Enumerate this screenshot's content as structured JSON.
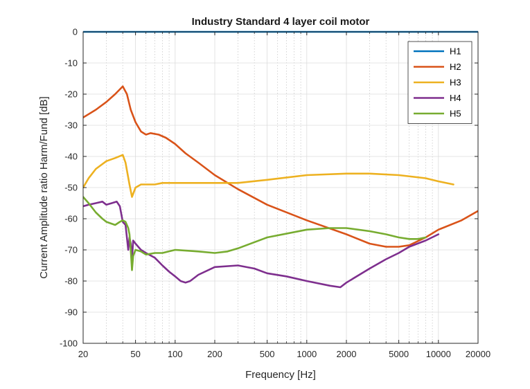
{
  "chart_data": {
    "type": "line",
    "title": "Industry Standard 4 layer coil motor",
    "xlabel": "Frequency [Hz]",
    "ylabel": "Current Amplitude ratio Harm/Fund [dB]",
    "xscale": "log",
    "xlim": [
      20,
      20000
    ],
    "ylim": [
      -100,
      0
    ],
    "xticks": [
      20,
      50,
      100,
      200,
      500,
      1000,
      2000,
      5000,
      10000,
      20000
    ],
    "xtick_labels": [
      "20",
      "50",
      "100",
      "200",
      "500",
      "1000",
      "2000",
      "5000",
      "10000",
      "20000"
    ],
    "yticks": [
      0,
      -10,
      -20,
      -30,
      -40,
      -50,
      -60,
      -70,
      -80,
      -90,
      -100
    ],
    "ytick_labels": [
      "0",
      "-10",
      "-20",
      "-30",
      "-40",
      "-50",
      "-60",
      "-70",
      "-80",
      "-90",
      "-100"
    ],
    "grid": true,
    "legend_position": "top-right",
    "series": [
      {
        "name": "H1",
        "color": "#0072BD",
        "x": [
          20,
          20000
        ],
        "y": [
          0,
          0
        ]
      },
      {
        "name": "H2",
        "color": "#D95319",
        "x": [
          20,
          25,
          30,
          35,
          40,
          43,
          46,
          50,
          55,
          60,
          65,
          75,
          85,
          100,
          120,
          150,
          200,
          300,
          500,
          1000,
          2000,
          3000,
          4000,
          5000,
          6000,
          8000,
          10000,
          15000,
          20000
        ],
        "y": [
          -27.5,
          -25,
          -22.5,
          -20,
          -17.5,
          -20,
          -25,
          -29,
          -32,
          -33,
          -32.5,
          -33,
          -34,
          -36,
          -39,
          -42,
          -46,
          -50.5,
          -55.5,
          -60.5,
          -65,
          -68,
          -69,
          -69,
          -68.5,
          -66,
          -63.5,
          -60.5,
          -57.5
        ]
      },
      {
        "name": "H3",
        "color": "#EDB120",
        "x": [
          20,
          22,
          25,
          30,
          35,
          40,
          42,
          45,
          47,
          50,
          55,
          60,
          70,
          80,
          100,
          150,
          200,
          300,
          500,
          1000,
          2000,
          3000,
          5000,
          8000,
          10000,
          13000
        ],
        "y": [
          -50,
          -47,
          -44,
          -41.5,
          -40.5,
          -39.5,
          -42,
          -49,
          -53,
          -50,
          -49,
          -49,
          -49,
          -48.5,
          -48.5,
          -48.5,
          -48.5,
          -48.5,
          -47.5,
          -46,
          -45.5,
          -45.5,
          -46,
          -47,
          -48,
          -49
        ]
      },
      {
        "name": "H4",
        "color": "#7E2F8E",
        "x": [
          20,
          22,
          25,
          28,
          30,
          33,
          36,
          38,
          40,
          42,
          44,
          45,
          46,
          47,
          48,
          50,
          55,
          60,
          70,
          80,
          90,
          100,
          110,
          120,
          130,
          150,
          200,
          300,
          400,
          500,
          700,
          1000,
          1500,
          1800,
          2000,
          3000,
          4000,
          5000,
          6000,
          8000,
          10000
        ],
        "y": [
          -56,
          -55.5,
          -55,
          -54.5,
          -55.5,
          -55,
          -54.5,
          -56,
          -61,
          -62,
          -70,
          -66,
          -68,
          -73,
          -67,
          -68,
          -70,
          -71,
          -72.5,
          -75,
          -77,
          -78.5,
          -80,
          -80.5,
          -80,
          -78,
          -75.5,
          -75,
          -76,
          -77.5,
          -78.5,
          -80,
          -81.5,
          -82,
          -80.5,
          -76,
          -73,
          -71,
          -69,
          -67,
          -65
        ]
      },
      {
        "name": "H5",
        "color": "#77AC30",
        "x": [
          20,
          22,
          25,
          28,
          30,
          35,
          38,
          40,
          42,
          44,
          45,
          46,
          47,
          48,
          50,
          55,
          60,
          70,
          80,
          100,
          150,
          200,
          250,
          300,
          500,
          1000,
          1500,
          2000,
          3000,
          4000,
          5000,
          6000,
          7000,
          8000
        ],
        "y": [
          -53,
          -55,
          -58,
          -60,
          -61,
          -62,
          -61,
          -60.5,
          -61,
          -63,
          -65,
          -70,
          -76.5,
          -72,
          -70,
          -70.5,
          -71.5,
          -71,
          -71,
          -70,
          -70.5,
          -71,
          -70.5,
          -69.5,
          -66,
          -63.5,
          -63,
          -63,
          -64,
          -65,
          -66,
          -66.5,
          -66.5,
          -66
        ]
      }
    ]
  }
}
